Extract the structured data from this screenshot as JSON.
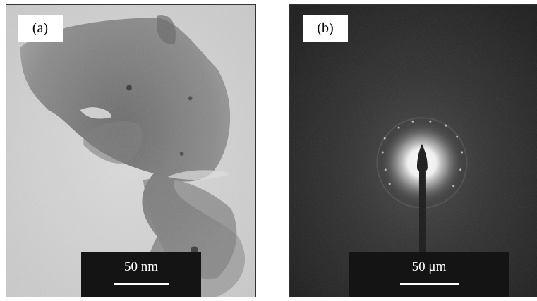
{
  "panels": [
    {
      "label": "(a)",
      "scale_text": "50 nm"
    },
    {
      "label": "(b)",
      "scale_text": "50 μm"
    }
  ]
}
